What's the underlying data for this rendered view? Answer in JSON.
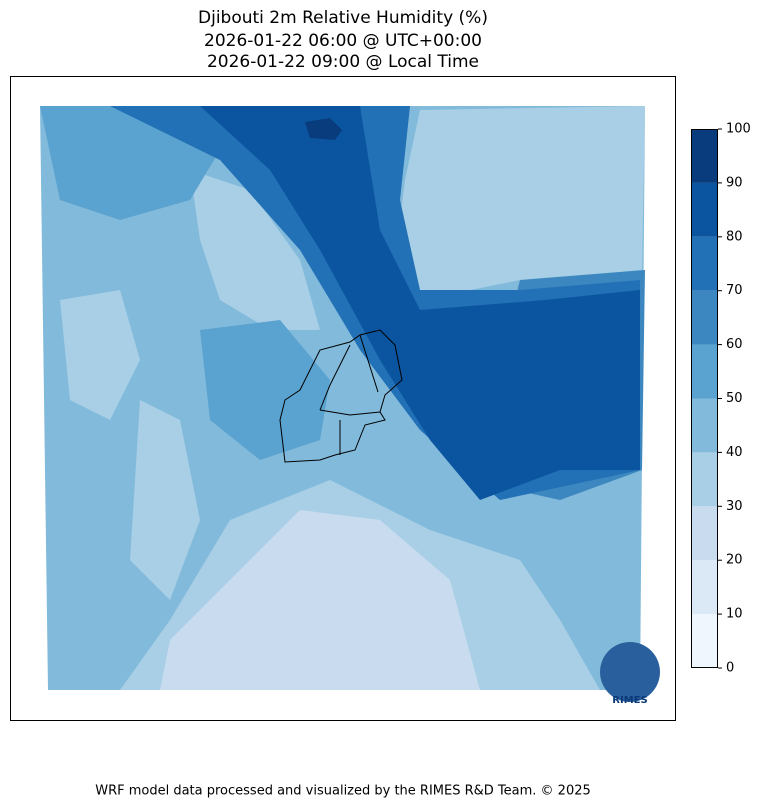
{
  "title": [
    "Djibouti 2m Relative Humidity (%)",
    "2026-01-22 06:00 @ UTC+00:00",
    "2026-01-22 09:00 @ Local Time"
  ],
  "colorbar": {
    "ticks": [
      0,
      10,
      20,
      30,
      40,
      50,
      60,
      70,
      80,
      90,
      100
    ],
    "colors": [
      "#f0f6fd",
      "#dbe9f6",
      "#c8dbef",
      "#a8cfe5",
      "#82badb",
      "#5aa2cf",
      "#3d87c0",
      "#2270b5",
      "#0b55a0",
      "#083c7d"
    ]
  },
  "logo": "RIMES",
  "footer": "WRF model data processed and visualized by the RIMES R&D Team. © 2025"
}
